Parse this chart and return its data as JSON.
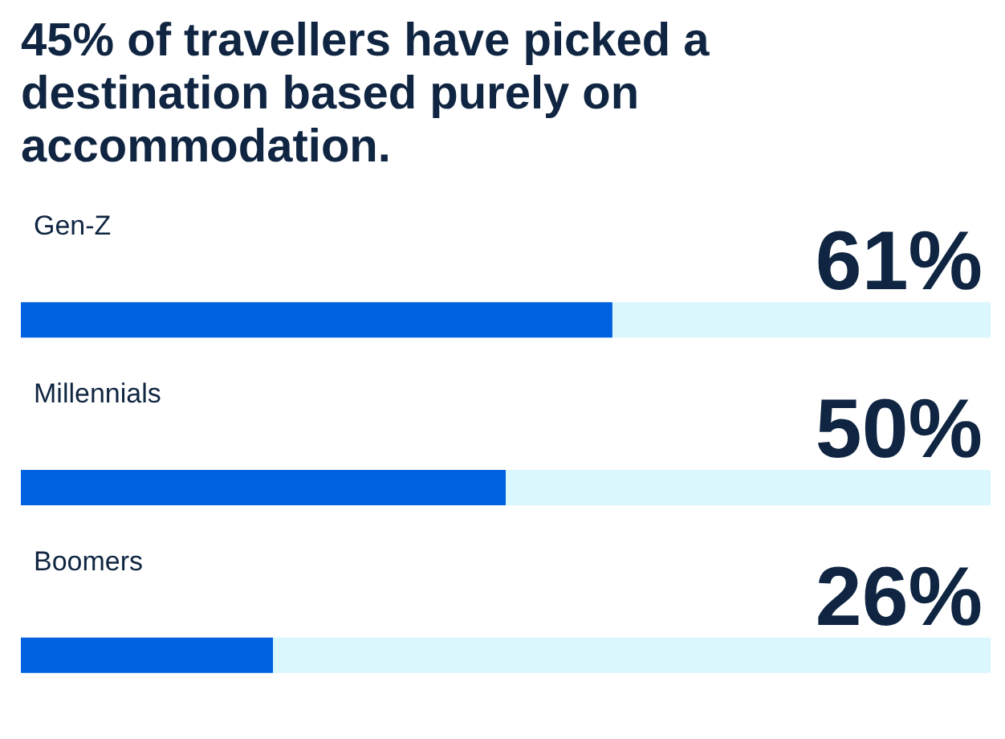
{
  "chart_data": {
    "type": "bar",
    "orientation": "horizontal",
    "title": "45% of travellers have picked a destination based purely on accommodation.",
    "categories": [
      "Gen-Z",
      "Millennials",
      "Boomers"
    ],
    "values": [
      61,
      50,
      26
    ],
    "value_labels": [
      "61%",
      "50%",
      "26%"
    ],
    "color": "#0061e0",
    "xlim": [
      0,
      100
    ],
    "tick_labels": "y"
  }
}
